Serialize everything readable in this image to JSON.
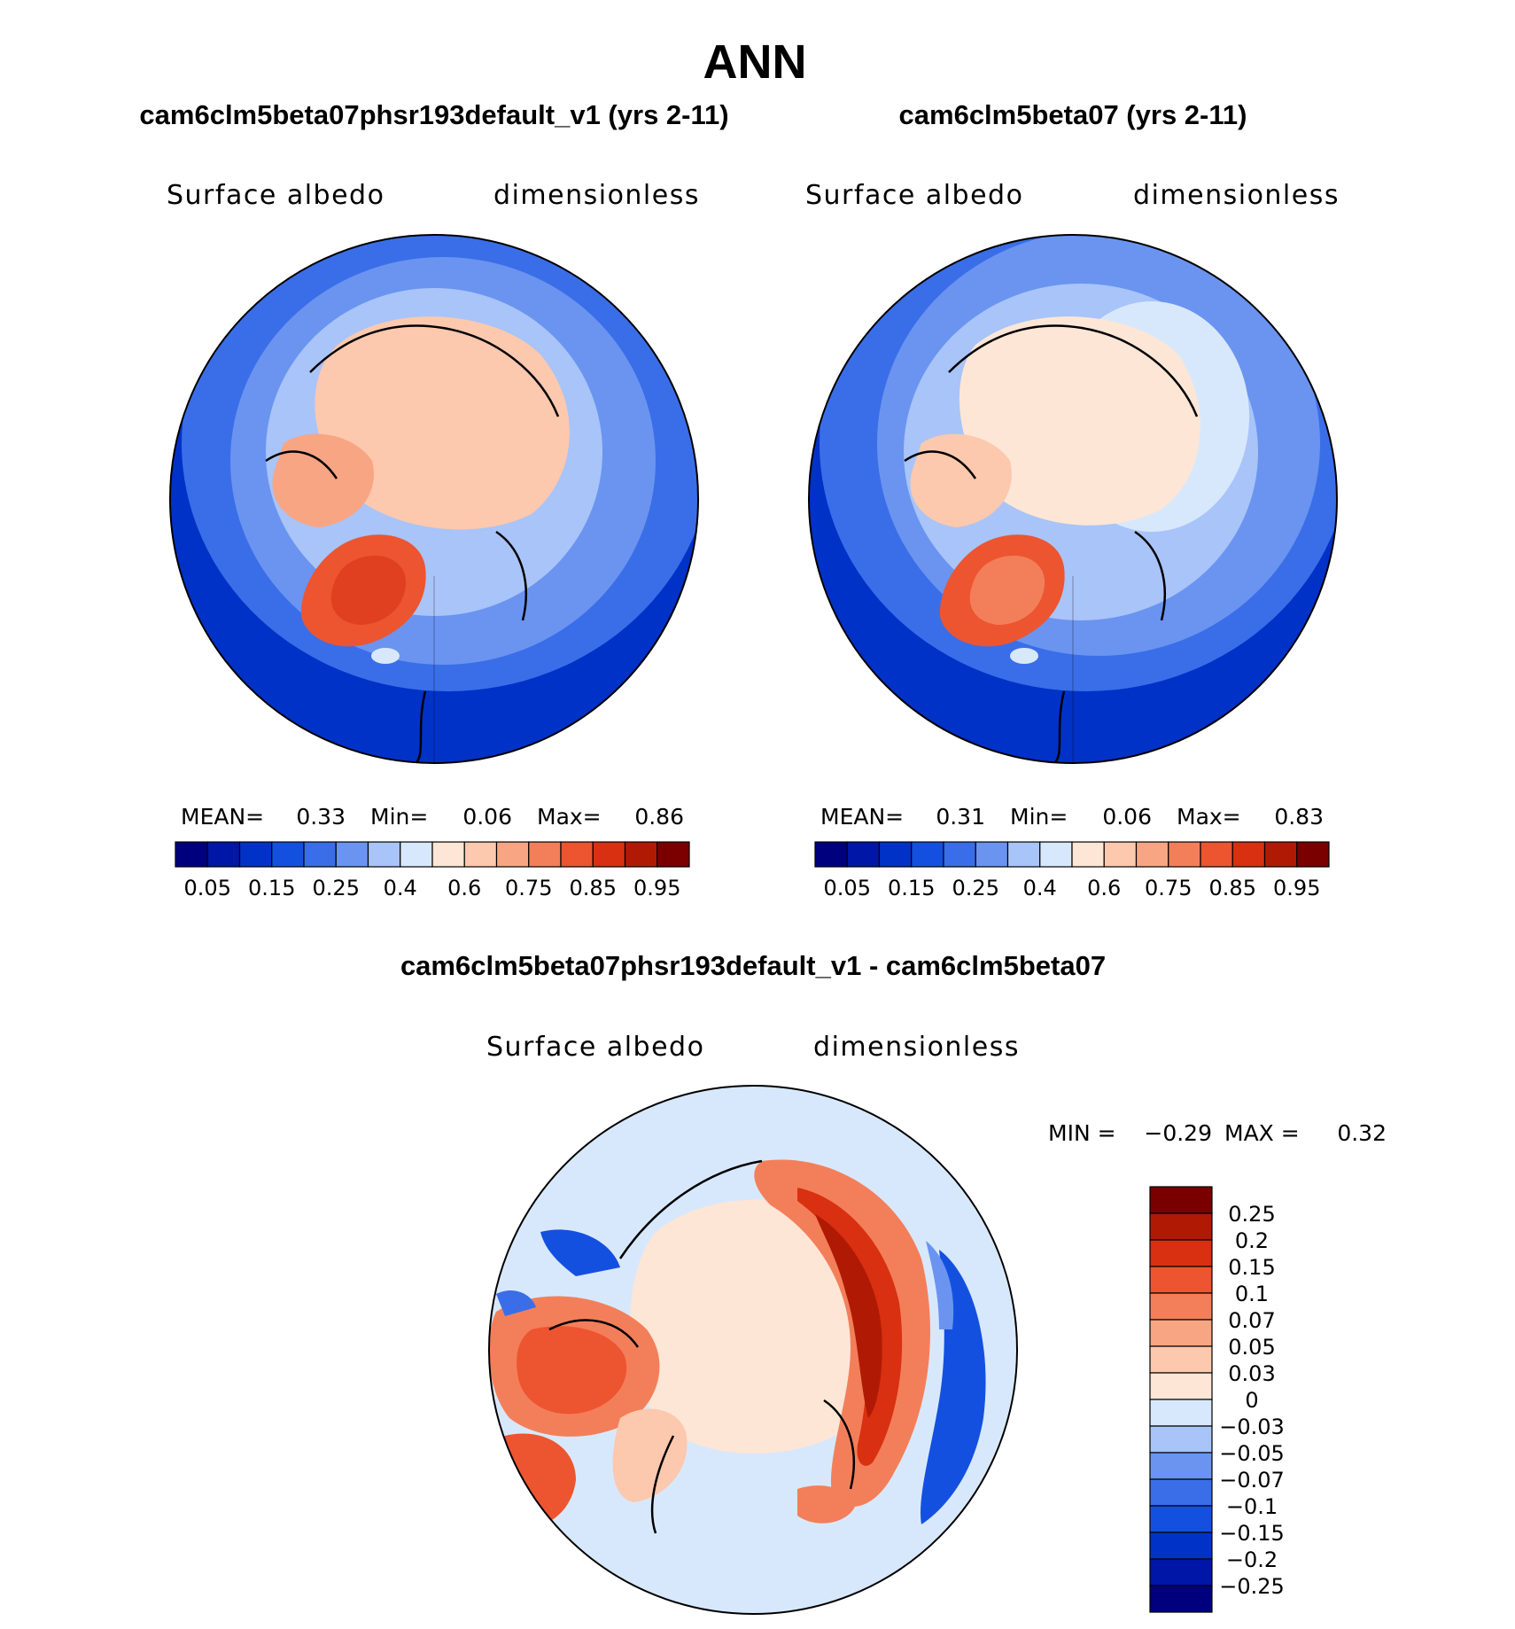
{
  "page_title": "ANN",
  "chart_data": [
    {
      "type": "heatmap",
      "projection": "north-polar-stereographic",
      "title": "cam6clm5beta07phsr193default_v1 (yrs 2-11)",
      "variable": "Surface albedo",
      "units": "dimensionless",
      "stats": {
        "mean_label": "MEAN=",
        "mean": "0.33",
        "min_label": "Min=",
        "min": "0.06",
        "max_label": "Max=",
        "max": "0.86"
      },
      "color_levels": [
        0.05,
        0.1,
        0.15,
        0.2,
        0.25,
        0.3,
        0.35,
        0.4,
        0.5,
        0.6,
        0.7,
        0.75,
        0.8,
        0.85,
        0.9,
        0.95
      ],
      "tick_labels": [
        "0.05",
        "0.15",
        "0.25",
        "0.4",
        "0.6",
        "0.75",
        "0.85",
        "0.95"
      ],
      "colors": [
        "#00007f",
        "#0016a6",
        "#0032c8",
        "#1450e0",
        "#3a6ee8",
        "#6a94f0",
        "#a8c4f8",
        "#d8e8fc",
        "#fde6d6",
        "#fcc8ae",
        "#f8a584",
        "#f37f5a",
        "#ec5530",
        "#d83010",
        "#b01a04",
        "#7a0000"
      ]
    },
    {
      "type": "heatmap",
      "projection": "north-polar-stereographic",
      "title": "cam6clm5beta07 (yrs 2-11)",
      "variable": "Surface albedo",
      "units": "dimensionless",
      "stats": {
        "mean_label": "MEAN=",
        "mean": "0.31",
        "min_label": "Min=",
        "min": "0.06",
        "max_label": "Max=",
        "max": "0.83"
      },
      "color_levels": [
        0.05,
        0.1,
        0.15,
        0.2,
        0.25,
        0.3,
        0.35,
        0.4,
        0.5,
        0.6,
        0.7,
        0.75,
        0.8,
        0.85,
        0.9,
        0.95
      ],
      "tick_labels": [
        "0.05",
        "0.15",
        "0.25",
        "0.4",
        "0.6",
        "0.75",
        "0.85",
        "0.95"
      ],
      "colors": [
        "#00007f",
        "#0016a6",
        "#0032c8",
        "#1450e0",
        "#3a6ee8",
        "#6a94f0",
        "#a8c4f8",
        "#d8e8fc",
        "#fde6d6",
        "#fcc8ae",
        "#f8a584",
        "#f37f5a",
        "#ec5530",
        "#d83010",
        "#b01a04",
        "#7a0000"
      ]
    },
    {
      "type": "heatmap",
      "projection": "north-polar-stereographic",
      "title": "cam6clm5beta07phsr193default_v1 - cam6clm5beta07",
      "variable": "Surface albedo",
      "units": "dimensionless",
      "stats": {
        "min_label": "MIN =",
        "min": "−0.29",
        "max_label": "MAX =",
        "max": "0.32"
      },
      "color_levels": [
        0.25,
        0.2,
        0.15,
        0.1,
        0.07,
        0.05,
        0.03,
        0,
        -0.03,
        -0.05,
        -0.07,
        -0.1,
        -0.15,
        -0.2,
        -0.25
      ],
      "tick_labels": [
        "0.25",
        "0.2",
        "0.15",
        "0.1",
        "0.07",
        "0.05",
        "0.03",
        "0",
        "−0.03",
        "−0.05",
        "−0.07",
        "−0.1",
        "−0.15",
        "−0.2",
        "−0.25"
      ],
      "colors": [
        "#7a0000",
        "#b01a04",
        "#d83010",
        "#ec5530",
        "#f37f5a",
        "#f8a584",
        "#fcc8ae",
        "#fde6d6",
        "#d8e8fc",
        "#a8c4f8",
        "#6a94f0",
        "#3a6ee8",
        "#1450e0",
        "#0032c8",
        "#0016a6",
        "#00007f"
      ]
    }
  ]
}
